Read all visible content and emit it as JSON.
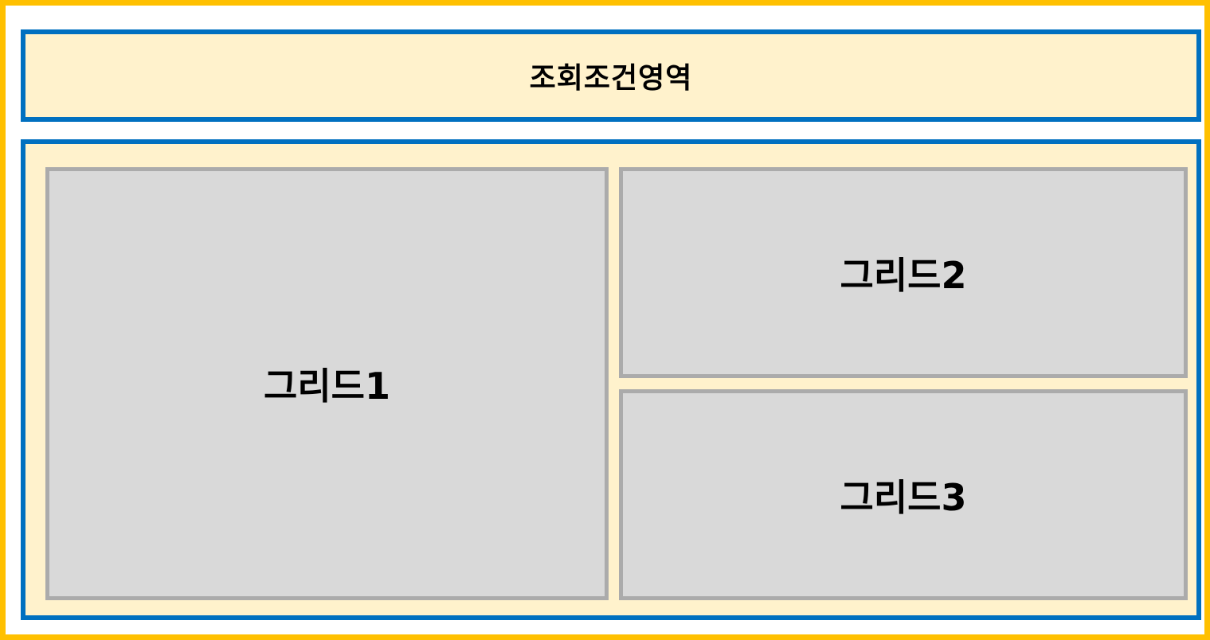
{
  "query_area": {
    "title": "조회조건영역"
  },
  "grids": [
    {
      "label": "그리드1"
    },
    {
      "label": "그리드2"
    },
    {
      "label": "그리드3"
    }
  ],
  "colors": {
    "outer_border": "#FFC000",
    "section_border": "#0070C0",
    "section_fill": "#FFF2CC",
    "grid_border": "#ABABAB",
    "grid_fill": "#D9D9D9"
  }
}
